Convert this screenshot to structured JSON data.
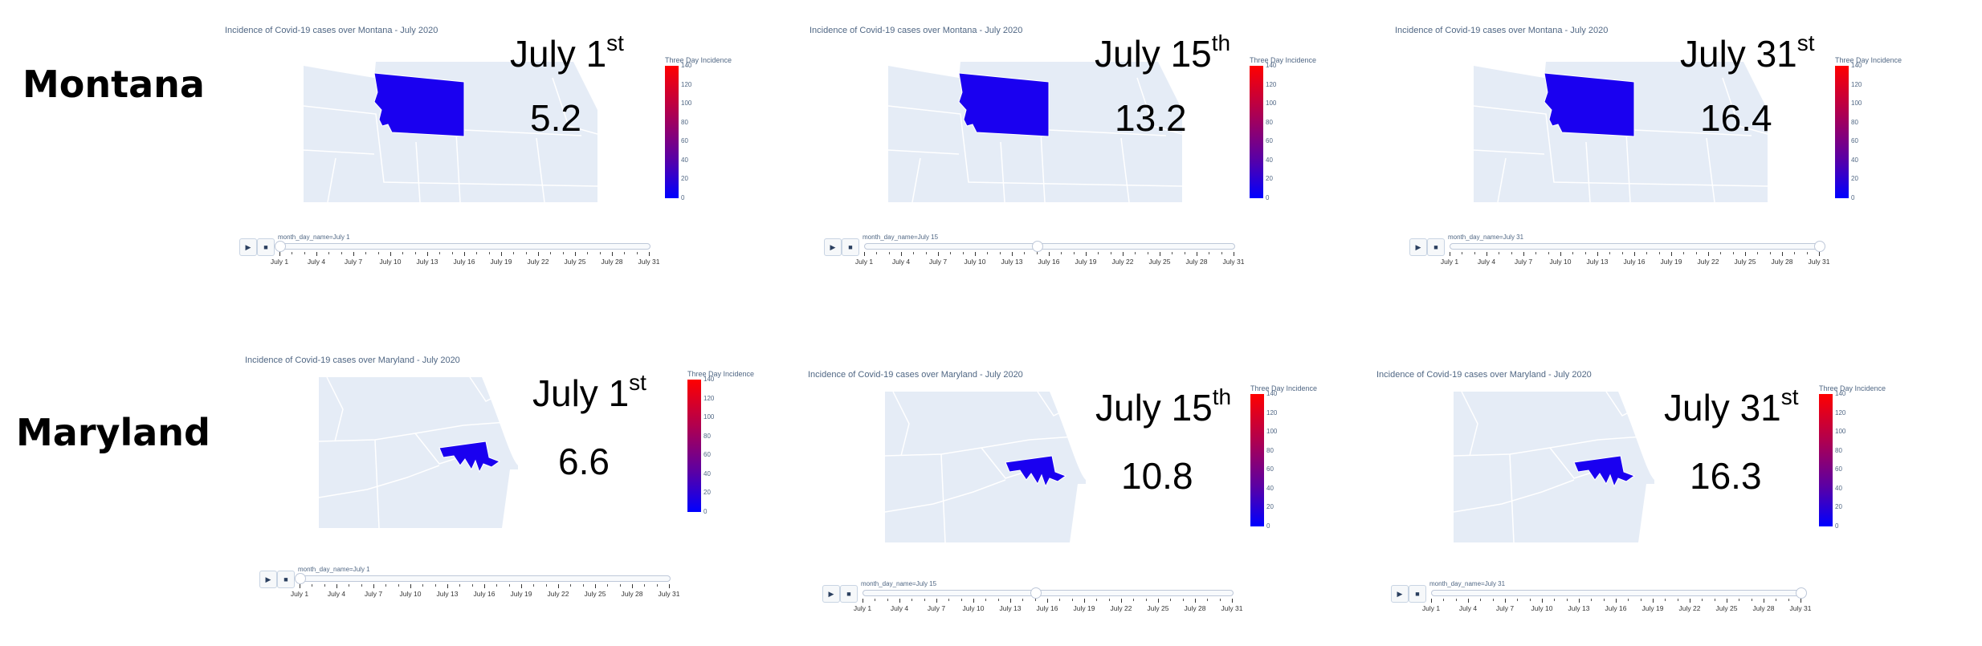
{
  "rows": [
    {
      "state_label": "Montana",
      "panels": [
        {
          "title": "Incidence of Covid-19 cases over Montana - July 2020",
          "day": "July 1",
          "ordinal": "st",
          "value": "5.2",
          "slider_label": "month_day_name=July 1",
          "slider_position": 0.0
        },
        {
          "title": "Incidence of Covid-19 cases over Montana - July 2020",
          "day": "July 15",
          "ordinal": "th",
          "value": "13.2",
          "slider_label": "month_day_name=July 15",
          "slider_position": 0.4667
        },
        {
          "title": "Incidence of Covid-19 cases over Montana - July 2020",
          "day": "July 31",
          "ordinal": "st",
          "value": "16.4",
          "slider_label": "month_day_name=July 31",
          "slider_position": 1.0
        }
      ]
    },
    {
      "state_label": "Maryland",
      "panels": [
        {
          "title": "Incidence of Covid-19 cases over Maryland - July 2020",
          "day": "July 1",
          "ordinal": "st",
          "value": "6.6",
          "slider_label": "month_day_name=July 1",
          "slider_position": 0.0
        },
        {
          "title": "Incidence of Covid-19 cases over Maryland - July 2020",
          "day": "July 15",
          "ordinal": "th",
          "value": "10.8",
          "slider_label": "month_day_name=July 15",
          "slider_position": 0.4667
        },
        {
          "title": "Incidence of Covid-19 cases over Maryland - July 2020",
          "day": "July 31",
          "ordinal": "st",
          "value": "16.3",
          "slider_label": "month_day_name=July 31",
          "slider_position": 1.0
        }
      ]
    }
  ],
  "colorbar": {
    "title": "Three Day Incidence",
    "ticks": [
      "140",
      "120",
      "100",
      "80",
      "60",
      "40",
      "20",
      "0"
    ],
    "colors": {
      "high": "#ff0000",
      "low": "#0000ff"
    }
  },
  "slider_ticks": [
    "July 1",
    "July 4",
    "July 7",
    "July 10",
    "July 13",
    "July 16",
    "July 19",
    "July 22",
    "July 25",
    "July 28",
    "July 31"
  ],
  "controls": {
    "play_icon": "play-icon",
    "pause_icon": "pause-icon"
  },
  "colors": {
    "state_fill": "#1a00f0",
    "land": "#e5ecf6",
    "border": "#ffffff",
    "text": "#506784"
  }
}
